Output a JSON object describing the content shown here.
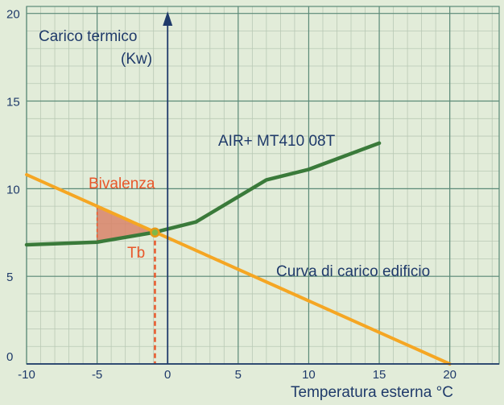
{
  "chart_data": {
    "type": "line",
    "ylabel_line1": "Carico termico",
    "ylabel_line2": "(Kw)",
    "xlabel": "Temperatura esterna °C",
    "xlim": [
      -10,
      23.5
    ],
    "ylim": [
      0,
      20.4
    ],
    "x_ticks": [
      "-10",
      "-5",
      "0",
      "5",
      "10",
      "15",
      "20"
    ],
    "y_ticks": [
      "0",
      "5",
      "10",
      "15",
      "20"
    ],
    "grid": true,
    "series": [
      {
        "name": "AIR+ MT410 08T",
        "color": "#3a7a3a",
        "x": [
          -10,
          -5,
          -1,
          2,
          7,
          10,
          15
        ],
        "y": [
          6.8,
          6.95,
          7.5,
          8.1,
          10.5,
          11.1,
          12.6
        ]
      },
      {
        "name": "Curva di carico edificio",
        "color": "#f5a623",
        "x": [
          -10,
          20
        ],
        "y": [
          10.8,
          0
        ]
      }
    ],
    "annotations": {
      "bivalenza": "Bivalenza",
      "tb": "Tb",
      "balance_point": {
        "x": -0.9,
        "y": 7.5
      },
      "shaded_region_x": [
        -5,
        -0.9
      ]
    },
    "colors": {
      "background": "#e2ecd9",
      "grid_minor": "#b9c9b5",
      "grid_major": "#5b8a78",
      "axis": "#1f3a6a",
      "accent_red": "#e8572a",
      "shade": "#d88468"
    }
  }
}
